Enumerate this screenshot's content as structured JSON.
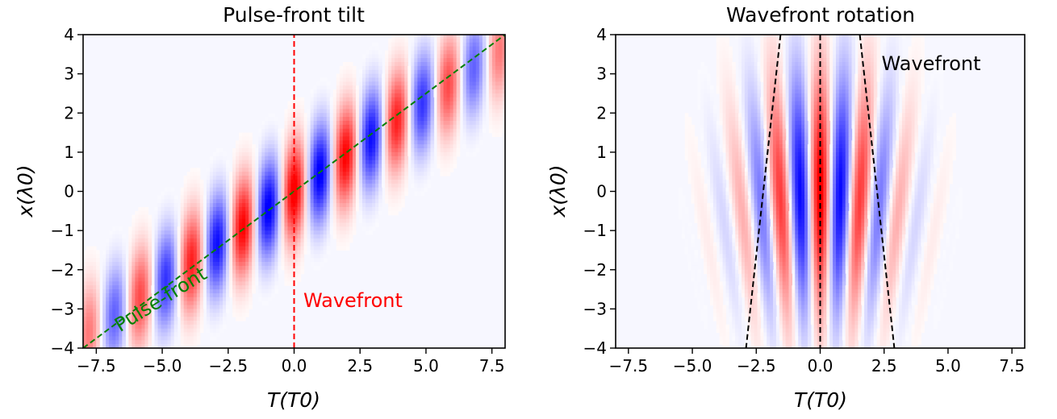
{
  "chart_data": [
    {
      "type": "heatmap",
      "title": "Pulse-front tilt",
      "xlabel": "T(T0)",
      "ylabel": "x(λ0)",
      "xlim": [
        -8,
        8
      ],
      "ylim": [
        -4,
        4
      ],
      "xticks": [
        -7.5,
        -5.0,
        -2.5,
        0.0,
        2.5,
        5.0,
        7.5
      ],
      "xtick_labels": [
        "−7.5",
        "−5.0",
        "−2.5",
        "0.0",
        "2.5",
        "5.0",
        "7.5"
      ],
      "yticks": [
        -4,
        -3,
        -2,
        -1,
        0,
        1,
        2,
        3,
        4
      ],
      "ytick_labels": [
        "−4",
        "−3",
        "−2",
        "−1",
        "0",
        "1",
        "2",
        "3",
        "4"
      ],
      "colormap": "bwr",
      "field_model": {
        "kind": "tilted-pulse",
        "time_sigma": 1.8,
        "space_sigma": 3.2,
        "lateral_sigma": 1.5,
        "tilt_slope": 0.5,
        "period": 1.95,
        "wavefront_curvature": 0
      },
      "lines": [
        {
          "label": "Pulse-front",
          "x": [
            -8,
            8
          ],
          "y": [
            -4,
            4
          ],
          "color": "#008000",
          "style": "dashed"
        },
        {
          "label": "Wavefront",
          "x": [
            0,
            0
          ],
          "y": [
            -4,
            4
          ],
          "color": "#ff0000",
          "style": "dashed"
        }
      ],
      "annotations": [
        {
          "text": "Pulse-front",
          "x": -6.6,
          "y": -3.6,
          "color": "#008000",
          "rotate": 32
        },
        {
          "text": "Wavefront",
          "x": 0.35,
          "y": -2.95,
          "color": "#ff0000",
          "rotate": 0
        }
      ]
    },
    {
      "type": "heatmap",
      "title": "Wavefront rotation",
      "xlabel": "T(T0)",
      "ylabel": "x(λ0)",
      "xlim": [
        -8,
        8
      ],
      "ylim": [
        -4,
        4
      ],
      "xticks": [
        -7.5,
        -5.0,
        -2.5,
        0.0,
        2.5,
        5.0,
        7.5
      ],
      "xtick_labels": [
        "−7.5",
        "−5.0",
        "−2.5",
        "0.0",
        "2.5",
        "5.0",
        "7.5"
      ],
      "yticks": [
        -4,
        -3,
        -2,
        -1,
        0,
        1,
        2,
        3,
        4
      ],
      "ytick_labels": [
        "−4",
        "−3",
        "−2",
        "−1",
        "0",
        "1",
        "2",
        "3",
        "4"
      ],
      "colormap": "bwr",
      "field_model": {
        "kind": "fanning-wavefronts",
        "time_sigma": 2.0,
        "space_sigma": 2.1,
        "lateral_sigma": 0,
        "tilt_slope": 0,
        "period": 1.95,
        "wavefront_curvature": 0.35
      },
      "lines": [
        {
          "label": "",
          "x": [
            -1.55,
            -2.9
          ],
          "y": [
            4,
            -4
          ],
          "color": "#000000",
          "style": "dashed"
        },
        {
          "label": "",
          "x": [
            0,
            0
          ],
          "y": [
            4,
            -4
          ],
          "color": "#000000",
          "style": "dashed"
        },
        {
          "label": "",
          "x": [
            1.55,
            2.9
          ],
          "y": [
            4,
            -4
          ],
          "color": "#000000",
          "style": "dashed"
        }
      ],
      "annotations": [
        {
          "text": "Wavefront",
          "x": 2.4,
          "y": 3.1,
          "color": "#000000",
          "rotate": 0
        }
      ]
    }
  ]
}
